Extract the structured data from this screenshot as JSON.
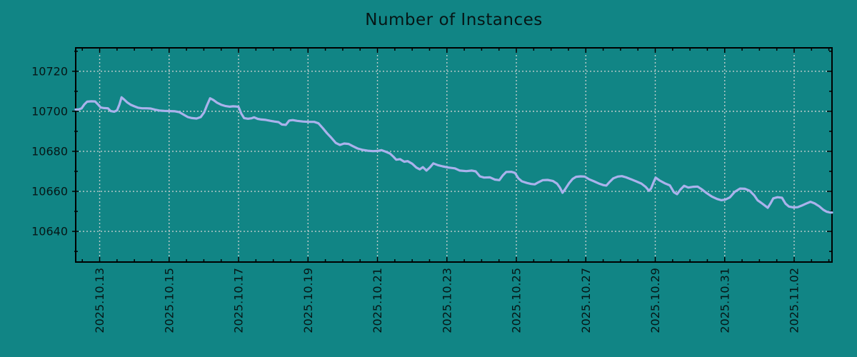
{
  "chart_data": {
    "type": "line",
    "title": "Number of Instances",
    "grid": "dashed",
    "legend": "none",
    "x_axis": {
      "unit": "date",
      "tick_labels": [
        "2025.10.13",
        "2025.10.15",
        "2025.10.17",
        "2025.10.19",
        "2025.10.21",
        "2025.10.23",
        "2025.10.25",
        "2025.10.27",
        "2025.10.29",
        "2025.10.31",
        "2025.11.02"
      ],
      "tick_positions_days": [
        0,
        2,
        4,
        6,
        8,
        10,
        12,
        14,
        16,
        18,
        20
      ],
      "minor_tick_interval_days": 0.5,
      "range_days": [
        -0.69,
        21.09
      ],
      "label_rotation_deg": -90
    },
    "y_axis": {
      "tick_labels": [
        "10640",
        "10660",
        "10680",
        "10700",
        "10720"
      ],
      "tick_values": [
        10640,
        10660,
        10680,
        10700,
        10720
      ],
      "minor_tick_interval": 10,
      "range": [
        10624.7,
        10731.7
      ]
    },
    "series": [
      {
        "name": "instances",
        "points_t_days_value": [
          [
            -0.69,
            10700.9
          ],
          [
            -0.61,
            10700.9
          ],
          [
            -0.52,
            10701.5
          ],
          [
            -0.44,
            10703.5
          ],
          [
            -0.36,
            10704.8
          ],
          [
            -0.24,
            10705.0
          ],
          [
            -0.13,
            10704.9
          ],
          [
            -0.05,
            10703.5
          ],
          [
            0.03,
            10701.9
          ],
          [
            0.13,
            10701.6
          ],
          [
            0.24,
            10701.5
          ],
          [
            0.32,
            10700.1
          ],
          [
            0.42,
            10699.8
          ],
          [
            0.5,
            10700.5
          ],
          [
            0.57,
            10703.5
          ],
          [
            0.63,
            10707.0
          ],
          [
            0.71,
            10705.8
          ],
          [
            0.79,
            10704.5
          ],
          [
            0.89,
            10703.3
          ],
          [
            1.0,
            10702.5
          ],
          [
            1.1,
            10701.8
          ],
          [
            1.22,
            10701.5
          ],
          [
            1.35,
            10701.5
          ],
          [
            1.47,
            10701.4
          ],
          [
            1.59,
            10700.8
          ],
          [
            1.72,
            10700.4
          ],
          [
            1.86,
            10700.2
          ],
          [
            2.03,
            10700.1
          ],
          [
            2.17,
            10700.0
          ],
          [
            2.29,
            10699.6
          ],
          [
            2.42,
            10698.3
          ],
          [
            2.54,
            10697.1
          ],
          [
            2.66,
            10696.6
          ],
          [
            2.79,
            10696.4
          ],
          [
            2.91,
            10697.1
          ],
          [
            3.01,
            10699.5
          ],
          [
            3.09,
            10703.0
          ],
          [
            3.18,
            10706.5
          ],
          [
            3.28,
            10705.6
          ],
          [
            3.38,
            10704.3
          ],
          [
            3.51,
            10703.2
          ],
          [
            3.63,
            10702.6
          ],
          [
            3.75,
            10702.3
          ],
          [
            3.84,
            10702.5
          ],
          [
            3.92,
            10702.4
          ],
          [
            4.0,
            10702.2
          ],
          [
            4.08,
            10698.8
          ],
          [
            4.16,
            10696.6
          ],
          [
            4.27,
            10696.3
          ],
          [
            4.37,
            10696.5
          ],
          [
            4.45,
            10697.0
          ],
          [
            4.55,
            10696.2
          ],
          [
            4.66,
            10695.9
          ],
          [
            4.78,
            10695.7
          ],
          [
            4.9,
            10695.3
          ],
          [
            5.03,
            10694.9
          ],
          [
            5.15,
            10694.6
          ],
          [
            5.25,
            10693.4
          ],
          [
            5.36,
            10693.2
          ],
          [
            5.46,
            10695.4
          ],
          [
            5.56,
            10695.6
          ],
          [
            5.69,
            10695.2
          ],
          [
            5.85,
            10694.9
          ],
          [
            6.01,
            10694.7
          ],
          [
            6.18,
            10694.7
          ],
          [
            6.3,
            10694.0
          ],
          [
            6.43,
            10691.5
          ],
          [
            6.55,
            10689.0
          ],
          [
            6.67,
            10686.8
          ],
          [
            6.8,
            10684.2
          ],
          [
            6.92,
            10683.2
          ],
          [
            7.04,
            10683.9
          ],
          [
            7.17,
            10683.7
          ],
          [
            7.29,
            10682.6
          ],
          [
            7.43,
            10681.4
          ],
          [
            7.58,
            10680.7
          ],
          [
            7.72,
            10680.3
          ],
          [
            7.87,
            10680.1
          ],
          [
            8.01,
            10680.2
          ],
          [
            8.11,
            10680.6
          ],
          [
            8.24,
            10679.8
          ],
          [
            8.36,
            10678.9
          ],
          [
            8.46,
            10677.3
          ],
          [
            8.54,
            10675.8
          ],
          [
            8.65,
            10676.1
          ],
          [
            8.77,
            10674.8
          ],
          [
            8.87,
            10675.1
          ],
          [
            9.0,
            10673.8
          ],
          [
            9.12,
            10671.9
          ],
          [
            9.22,
            10671.0
          ],
          [
            9.31,
            10672.1
          ],
          [
            9.41,
            10670.4
          ],
          [
            9.51,
            10672.0
          ],
          [
            9.61,
            10674.0
          ],
          [
            9.74,
            10673.1
          ],
          [
            9.88,
            10672.5
          ],
          [
            10.05,
            10671.9
          ],
          [
            10.23,
            10671.5
          ],
          [
            10.37,
            10670.4
          ],
          [
            10.56,
            10670.1
          ],
          [
            10.72,
            10670.4
          ],
          [
            10.83,
            10670.0
          ],
          [
            10.95,
            10667.5
          ],
          [
            11.07,
            10666.9
          ],
          [
            11.24,
            10667.0
          ],
          [
            11.38,
            10665.9
          ],
          [
            11.51,
            10665.6
          ],
          [
            11.61,
            10668.0
          ],
          [
            11.71,
            10669.7
          ],
          [
            11.86,
            10669.8
          ],
          [
            11.96,
            10669.2
          ],
          [
            12.06,
            10666.5
          ],
          [
            12.16,
            10665.0
          ],
          [
            12.31,
            10664.2
          ],
          [
            12.43,
            10663.7
          ],
          [
            12.53,
            10663.5
          ],
          [
            12.63,
            10664.5
          ],
          [
            12.76,
            10665.6
          ],
          [
            12.9,
            10665.7
          ],
          [
            13.05,
            10665.2
          ],
          [
            13.17,
            10663.9
          ],
          [
            13.25,
            10662.0
          ],
          [
            13.33,
            10659.3
          ],
          [
            13.42,
            10661.5
          ],
          [
            13.52,
            10664.1
          ],
          [
            13.62,
            10666.2
          ],
          [
            13.72,
            10667.3
          ],
          [
            13.85,
            10667.5
          ],
          [
            13.97,
            10667.4
          ],
          [
            14.1,
            10666.0
          ],
          [
            14.24,
            10665.0
          ],
          [
            14.38,
            10663.9
          ],
          [
            14.51,
            10663.1
          ],
          [
            14.59,
            10662.9
          ],
          [
            14.69,
            10664.8
          ],
          [
            14.79,
            10666.5
          ],
          [
            14.92,
            10667.4
          ],
          [
            15.04,
            10667.6
          ],
          [
            15.16,
            10667.0
          ],
          [
            15.31,
            10666.0
          ],
          [
            15.45,
            10665.0
          ],
          [
            15.6,
            10663.9
          ],
          [
            15.72,
            10662.3
          ],
          [
            15.82,
            10660.3
          ],
          [
            15.88,
            10661.5
          ],
          [
            15.95,
            10664.5
          ],
          [
            16.01,
            10666.9
          ],
          [
            16.13,
            10665.4
          ],
          [
            16.28,
            10664.0
          ],
          [
            16.42,
            10663.0
          ],
          [
            16.54,
            10659.5
          ],
          [
            16.63,
            10658.6
          ],
          [
            16.73,
            10661.0
          ],
          [
            16.83,
            10662.8
          ],
          [
            16.95,
            10661.9
          ],
          [
            17.1,
            10662.3
          ],
          [
            17.22,
            10662.4
          ],
          [
            17.34,
            10661.0
          ],
          [
            17.49,
            10659.0
          ],
          [
            17.63,
            10657.4
          ],
          [
            17.78,
            10656.2
          ],
          [
            17.9,
            10655.6
          ],
          [
            18.02,
            10655.9
          ],
          [
            18.15,
            10657.0
          ],
          [
            18.29,
            10659.8
          ],
          [
            18.44,
            10661.4
          ],
          [
            18.58,
            10661.3
          ],
          [
            18.72,
            10660.3
          ],
          [
            18.85,
            10658.0
          ],
          [
            18.95,
            10655.5
          ],
          [
            19.05,
            10654.3
          ],
          [
            19.15,
            10653.0
          ],
          [
            19.24,
            10651.8
          ],
          [
            19.32,
            10654.0
          ],
          [
            19.4,
            10656.5
          ],
          [
            19.52,
            10657.1
          ],
          [
            19.65,
            10656.8
          ],
          [
            19.75,
            10653.9
          ],
          [
            19.85,
            10652.4
          ],
          [
            19.98,
            10652.0
          ],
          [
            20.1,
            10652.1
          ],
          [
            20.22,
            10652.9
          ],
          [
            20.35,
            10653.9
          ],
          [
            20.47,
            10654.8
          ],
          [
            20.59,
            10654.0
          ],
          [
            20.72,
            10652.6
          ],
          [
            20.84,
            10650.8
          ],
          [
            20.94,
            10649.8
          ],
          [
            21.03,
            10649.5
          ],
          [
            21.09,
            10649.4
          ]
        ]
      }
    ],
    "style": {
      "background": "#118585",
      "line_color": "#aab2ec",
      "grid_color": "#c2cdcd",
      "axis_color": "#000000",
      "text_color": "#061616"
    }
  }
}
